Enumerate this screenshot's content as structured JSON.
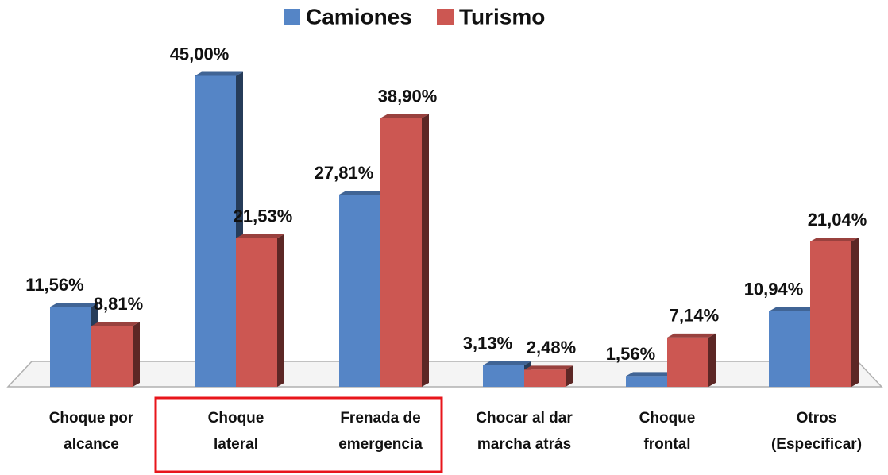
{
  "chart_data": {
    "type": "bar3d",
    "categories": [
      "Choque por\nalcance",
      "Choque\nlateral",
      "Frenada de\nemergencia",
      "Chocar al dar\nmarcha atrás",
      "Choque\nfrontal",
      "Otros\n(Especificar)"
    ],
    "series": [
      {
        "name": "Camiones",
        "color": "#5585c6",
        "values": [
          11.56,
          45,
          27.81,
          3.13,
          1.56,
          10.94
        ],
        "value_labels": [
          "11,56%",
          "45,00%",
          "27,81%",
          "3,13%",
          "1,56%",
          "10,94%"
        ]
      },
      {
        "name": "Turismo",
        "color": "#cc5752",
        "values": [
          8.81,
          21.53,
          38.9,
          2.48,
          7.14,
          21.04
        ],
        "value_labels": [
          "8,81%",
          "21,53%",
          "38,90%",
          "2,48%",
          "7,14%",
          "21,04%"
        ]
      }
    ]
  }
}
